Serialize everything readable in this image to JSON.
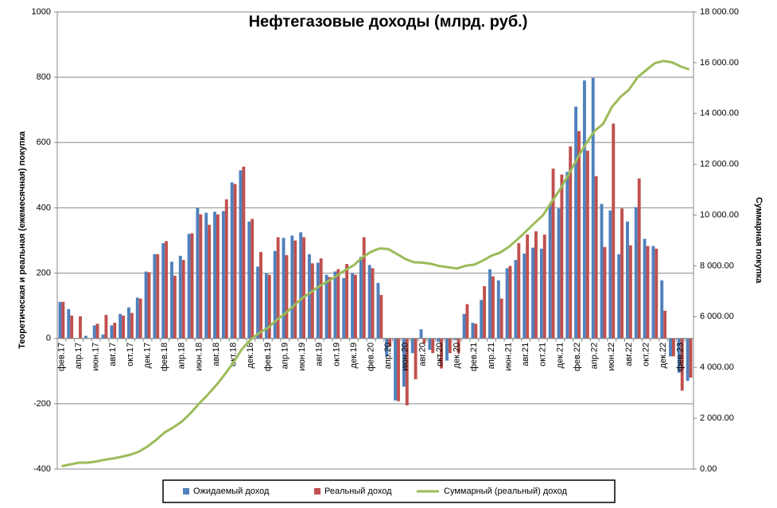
{
  "chart_data": {
    "type": "bar",
    "title": "Нефтегазовые доходы (млрд. руб.)",
    "y_label": "Теоретическая  и реальная  (ежемесячная)  покупка",
    "y2_label": "Суммарная  покупка",
    "categories": [
      "фев.17",
      null,
      "апр.17",
      null,
      "июн.17",
      null,
      "авг.17",
      null,
      "окт.17",
      null,
      "дек.17",
      null,
      "фев.18",
      null,
      "апр.18",
      null,
      "июн.18",
      null,
      "авг.18",
      null,
      "окт.18",
      null,
      "дек.18",
      null,
      "фев.19",
      null,
      "апр.19",
      null,
      "июн.19",
      null,
      "авг.19",
      null,
      "окт.19",
      null,
      "дек.19",
      null,
      "фев.20",
      null,
      "апр.20",
      null,
      "июн.20",
      null,
      "авг.20",
      null,
      "окт.20",
      null,
      "дек.20",
      null,
      "фев.21",
      null,
      "апр.21",
      null,
      "июн.21",
      null,
      "авг.21",
      null,
      "окт.21",
      null,
      "дек.21",
      null,
      "фев.22",
      null,
      "апр.22",
      null,
      "июн.22",
      null,
      "авг.22",
      null,
      "окт.22",
      null,
      "дек.22",
      null,
      "фев.23",
      null
    ],
    "series": [
      {
        "name": "Ожидаемый доход",
        "color": "#4f81bd",
        "type": "bar",
        "values": [
          112,
          90,
          0,
          8,
          40,
          12,
          40,
          75,
          95,
          125,
          205,
          258,
          292,
          235,
          253,
          320,
          400,
          385,
          388,
          390,
          478,
          515,
          358,
          220,
          200,
          268,
          308,
          315,
          325,
          258,
          232,
          195,
          205,
          185,
          200,
          250,
          225,
          170,
          -55,
          -190,
          -148,
          -45,
          28,
          -35,
          -10,
          -68,
          -5,
          75,
          48,
          118,
          212,
          178,
          215,
          240,
          260,
          278,
          275,
          410,
          398,
          510,
          710,
          790,
          798,
          412,
          392,
          258,
          358,
          402,
          305,
          283,
          178,
          -55,
          -105,
          -130
        ]
      },
      {
        "name": "Реальный доход",
        "color": "#c0504d",
        "type": "bar",
        "values": [
          112,
          70,
          68,
          0,
          45,
          72,
          48,
          70,
          78,
          122,
          203,
          258,
          298,
          192,
          240,
          322,
          380,
          348,
          380,
          426,
          473,
          526,
          366,
          265,
          195,
          310,
          255,
          300,
          310,
          230,
          245,
          188,
          212,
          228,
          195,
          310,
          215,
          133,
          -25,
          -192,
          -205,
          -125,
          -15,
          -45,
          -92,
          -45,
          -45,
          105,
          45,
          160,
          190,
          122,
          222,
          292,
          318,
          328,
          318,
          520,
          502,
          588,
          635,
          575,
          497,
          280,
          658,
          398,
          285,
          490,
          283,
          275,
          85,
          -55,
          -160,
          -120
        ]
      },
      {
        "name": "Суммарный (реальный) доход",
        "color": "#9bbb59",
        "type": "line",
        "axis": "y2",
        "values": [
          112,
          182,
          250,
          250,
          295,
          367,
          415,
          485,
          563,
          685,
          888,
          1146,
          1444,
          1636,
          1876,
          2198,
          2578,
          2926,
          3306,
          3732,
          4205,
          4731,
          5097,
          5362,
          5557,
          5867,
          6122,
          6422,
          6732,
          6962,
          7207,
          7395,
          7607,
          7835,
          8030,
          8340,
          8555,
          8688,
          8663,
          8471,
          8266,
          8141,
          8126,
          8081,
          7989,
          7944,
          7899,
          8004,
          8049,
          8209,
          8399,
          8521,
          8743,
          9035,
          9353,
          9681,
          9999,
          10519,
          11021,
          11609,
          12244,
          12819,
          13316,
          13596,
          14254,
          14652,
          14937,
          15427,
          15710,
          15985,
          16070,
          16015,
          15855,
          15735
        ]
      }
    ],
    "ylim": [
      -400,
      1000
    ],
    "yticks": [
      -400,
      -200,
      0,
      200,
      400,
      600,
      800,
      1000
    ],
    "y2lim": [
      0,
      18000
    ],
    "y2ticks": [
      {
        "value": 0,
        "label": "0.00"
      },
      {
        "value": 2000,
        "label": "2 000.00"
      },
      {
        "value": 4000,
        "label": "4 000.00"
      },
      {
        "value": 6000,
        "label": "6 000.00"
      },
      {
        "value": 8000,
        "label": "8 000.00"
      },
      {
        "value": 10000,
        "label": "10 000.00"
      },
      {
        "value": 12000,
        "label": "12 000.00"
      },
      {
        "value": 14000,
        "label": "14 000.00"
      },
      {
        "value": 16000,
        "label": "16 000.00"
      },
      {
        "value": 18000,
        "label": "18 000.00"
      }
    ],
    "grid": true,
    "legend": "bottom"
  }
}
